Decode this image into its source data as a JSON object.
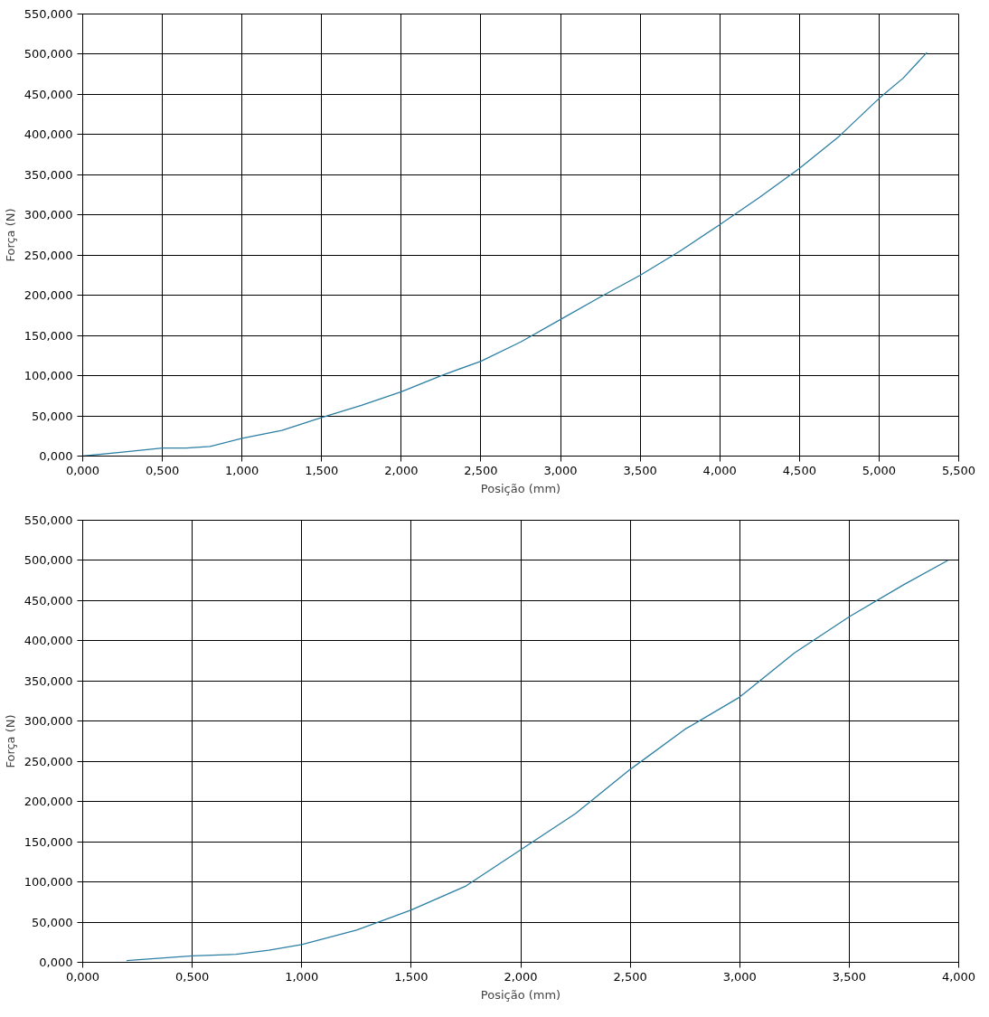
{
  "chart_data": [
    {
      "type": "line",
      "xlabel": "Posição (mm)",
      "ylabel": "Força (N)",
      "grid": true,
      "marker": "none",
      "line_style": "solid",
      "xlim": [
        0,
        5.5
      ],
      "ylim": [
        0,
        550
      ],
      "xticks": [
        {
          "value": 0,
          "label": "0,000"
        },
        {
          "value": 0.5,
          "label": "0,500"
        },
        {
          "value": 1,
          "label": "1,000"
        },
        {
          "value": 1.5,
          "label": "1,500"
        },
        {
          "value": 2,
          "label": "2,000"
        },
        {
          "value": 2.5,
          "label": "2,500"
        },
        {
          "value": 3,
          "label": "3,000"
        },
        {
          "value": 3.5,
          "label": "3,500"
        },
        {
          "value": 4,
          "label": "4,000"
        },
        {
          "value": 4.5,
          "label": "4,500"
        },
        {
          "value": 5,
          "label": "5,000"
        },
        {
          "value": 5.5,
          "label": "5,500"
        }
      ],
      "yticks": [
        {
          "value": 0,
          "label": "0,000"
        },
        {
          "value": 50,
          "label": "50,000"
        },
        {
          "value": 100,
          "label": "100,000"
        },
        {
          "value": 150,
          "label": "150,000"
        },
        {
          "value": 200,
          "label": "200,000"
        },
        {
          "value": 250,
          "label": "250,000"
        },
        {
          "value": 300,
          "label": "300,000"
        },
        {
          "value": 350,
          "label": "350,000"
        },
        {
          "value": 400,
          "label": "400,000"
        },
        {
          "value": 450,
          "label": "450,000"
        },
        {
          "value": 500,
          "label": "500,000"
        },
        {
          "value": 550,
          "label": "550,000"
        }
      ],
      "series": [
        {
          "color": "#2b7fa3",
          "x": [
            0,
            0.25,
            0.5,
            0.65,
            0.8,
            1.0,
            1.25,
            1.5,
            1.75,
            2.0,
            2.25,
            2.5,
            2.75,
            3.0,
            3.25,
            3.5,
            3.75,
            4.0,
            4.25,
            4.5,
            4.75,
            5.0,
            5.15,
            5.3
          ],
          "values": [
            0,
            5,
            10,
            10,
            12,
            22,
            32,
            48,
            63,
            80,
            100,
            118,
            142,
            170,
            198,
            225,
            255,
            288,
            322,
            358,
            398,
            445,
            470,
            502
          ]
        }
      ]
    },
    {
      "type": "line",
      "xlabel": "Posição (mm)",
      "ylabel": "Força (N)",
      "grid": true,
      "marker": "none",
      "line_style": "solid",
      "xlim": [
        0,
        4
      ],
      "ylim": [
        0,
        550
      ],
      "xticks": [
        {
          "value": 0,
          "label": "0,000"
        },
        {
          "value": 0.5,
          "label": "0,500"
        },
        {
          "value": 1,
          "label": "1,000"
        },
        {
          "value": 1.5,
          "label": "1,500"
        },
        {
          "value": 2,
          "label": "2,000"
        },
        {
          "value": 2.5,
          "label": "2,500"
        },
        {
          "value": 3,
          "label": "3,000"
        },
        {
          "value": 3.5,
          "label": "3,500"
        },
        {
          "value": 4,
          "label": "4,000"
        }
      ],
      "yticks": [
        {
          "value": 0,
          "label": "0,000"
        },
        {
          "value": 50,
          "label": "50,000"
        },
        {
          "value": 100,
          "label": "100,000"
        },
        {
          "value": 150,
          "label": "150,000"
        },
        {
          "value": 200,
          "label": "200,000"
        },
        {
          "value": 250,
          "label": "250,000"
        },
        {
          "value": 300,
          "label": "300,000"
        },
        {
          "value": 350,
          "label": "350,000"
        },
        {
          "value": 400,
          "label": "400,000"
        },
        {
          "value": 450,
          "label": "450,000"
        },
        {
          "value": 500,
          "label": "500,000"
        },
        {
          "value": 550,
          "label": "550,000"
        }
      ],
      "series": [
        {
          "color": "#2b7fa3",
          "x": [
            0.2,
            0.5,
            0.7,
            0.85,
            1.0,
            1.25,
            1.5,
            1.75,
            2.0,
            2.25,
            2.5,
            2.75,
            3.0,
            3.25,
            3.5,
            3.75,
            3.95
          ],
          "values": [
            2,
            8,
            10,
            15,
            22,
            40,
            65,
            95,
            140,
            185,
            240,
            290,
            330,
            385,
            430,
            470,
            500
          ]
        }
      ]
    }
  ]
}
